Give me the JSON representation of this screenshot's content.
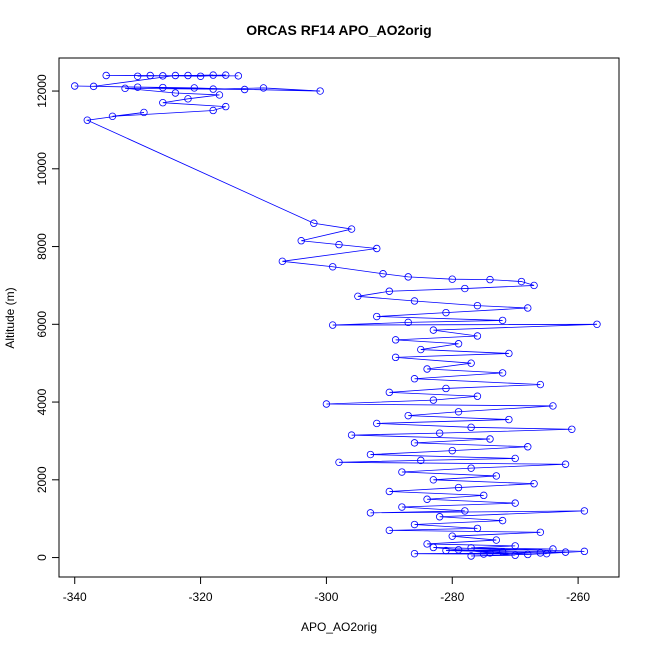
{
  "chart_data": {
    "type": "scatter",
    "title": "ORCAS RF14 APO_AO2orig",
    "xlabel": "APO_AO2orig",
    "ylabel": "Altitude (m)",
    "xlim": [
      -342.5,
      -253.5
    ],
    "ylim": [
      -500,
      12850
    ],
    "xticks": [
      -340,
      -320,
      -300,
      -280,
      -260
    ],
    "yticks": [
      0,
      2000,
      4000,
      6000,
      8000,
      10000,
      12000
    ],
    "grid": false,
    "legend": "none",
    "marker": "open-circle",
    "connect_points": true,
    "series": [
      {
        "color": "#0000ff",
        "points": [
          [
            -326,
            12390
          ],
          [
            -318,
            12410
          ],
          [
            -330,
            12380
          ],
          [
            -322,
            12400
          ],
          [
            -314,
            12390
          ],
          [
            -335,
            12400
          ],
          [
            -328,
            12400
          ],
          [
            -320,
            12380
          ],
          [
            -316,
            12410
          ],
          [
            -324,
            12400
          ],
          [
            -337,
            12120
          ],
          [
            -330,
            12100
          ],
          [
            -318,
            12050
          ],
          [
            -310,
            12080
          ],
          [
            -301,
            12000
          ],
          [
            -326,
            12090
          ],
          [
            -340,
            12130
          ],
          [
            -321,
            12080
          ],
          [
            -313,
            12040
          ],
          [
            -332,
            12070
          ],
          [
            -324,
            11950
          ],
          [
            -317,
            11900
          ],
          [
            -322,
            11800
          ],
          [
            -326,
            11700
          ],
          [
            -316,
            11600
          ],
          [
            -318,
            11500
          ],
          [
            -334,
            11350
          ],
          [
            -329,
            11450
          ],
          [
            -338,
            11250
          ],
          [
            -302,
            8600
          ],
          [
            -296,
            8450
          ],
          [
            -304,
            8150
          ],
          [
            -298,
            8050
          ],
          [
            -292,
            7950
          ],
          [
            -307,
            7620
          ],
          [
            -299,
            7480
          ],
          [
            -291,
            7300
          ],
          [
            -287,
            7220
          ],
          [
            -280,
            7160
          ],
          [
            -274,
            7150
          ],
          [
            -269,
            7100
          ],
          [
            -267,
            7000
          ],
          [
            -278,
            6920
          ],
          [
            -290,
            6850
          ],
          [
            -295,
            6720
          ],
          [
            -286,
            6600
          ],
          [
            -276,
            6480
          ],
          [
            -268,
            6420
          ],
          [
            -281,
            6300
          ],
          [
            -292,
            6200
          ],
          [
            -272,
            6100
          ],
          [
            -287,
            6050
          ],
          [
            -299,
            5980
          ],
          [
            -257,
            6000
          ],
          [
            -283,
            5850
          ],
          [
            -276,
            5700
          ],
          [
            -289,
            5600
          ],
          [
            -279,
            5500
          ],
          [
            -285,
            5350
          ],
          [
            -271,
            5250
          ],
          [
            -289,
            5150
          ],
          [
            -277,
            5000
          ],
          [
            -284,
            4850
          ],
          [
            -272,
            4750
          ],
          [
            -286,
            4600
          ],
          [
            -266,
            4450
          ],
          [
            -281,
            4350
          ],
          [
            -290,
            4250
          ],
          [
            -276,
            4150
          ],
          [
            -283,
            4050
          ],
          [
            -300,
            3950
          ],
          [
            -264,
            3900
          ],
          [
            -279,
            3750
          ],
          [
            -287,
            3650
          ],
          [
            -271,
            3550
          ],
          [
            -292,
            3450
          ],
          [
            -277,
            3350
          ],
          [
            -261,
            3300
          ],
          [
            -282,
            3200
          ],
          [
            -296,
            3150
          ],
          [
            -274,
            3050
          ],
          [
            -286,
            2950
          ],
          [
            -268,
            2850
          ],
          [
            -280,
            2750
          ],
          [
            -293,
            2650
          ],
          [
            -270,
            2550
          ],
          [
            -285,
            2500
          ],
          [
            -298,
            2450
          ],
          [
            -262,
            2400
          ],
          [
            -277,
            2300
          ],
          [
            -288,
            2200
          ],
          [
            -273,
            2100
          ],
          [
            -283,
            2000
          ],
          [
            -267,
            1900
          ],
          [
            -279,
            1800
          ],
          [
            -290,
            1700
          ],
          [
            -275,
            1600
          ],
          [
            -284,
            1500
          ],
          [
            -270,
            1400
          ],
          [
            -288,
            1300
          ],
          [
            -278,
            1200
          ],
          [
            -293,
            1150
          ],
          [
            -259,
            1200
          ],
          [
            -282,
            1050
          ],
          [
            -272,
            950
          ],
          [
            -286,
            850
          ],
          [
            -276,
            750
          ],
          [
            -290,
            700
          ],
          [
            -266,
            650
          ],
          [
            -280,
            550
          ],
          [
            -273,
            450
          ],
          [
            -284,
            350
          ],
          [
            -270,
            300
          ],
          [
            -277,
            250
          ],
          [
            -264,
            220
          ],
          [
            -281,
            180
          ],
          [
            -272,
            150
          ],
          [
            -266,
            120
          ],
          [
            -286,
            100
          ],
          [
            -275,
            90
          ],
          [
            -262,
            140
          ],
          [
            -279,
            200
          ],
          [
            -268,
            80
          ],
          [
            -259,
            160
          ],
          [
            -283,
            260
          ],
          [
            -274,
            120
          ],
          [
            -270,
            60
          ],
          [
            -277,
            40
          ],
          [
            -265,
            100
          ]
        ]
      }
    ]
  }
}
